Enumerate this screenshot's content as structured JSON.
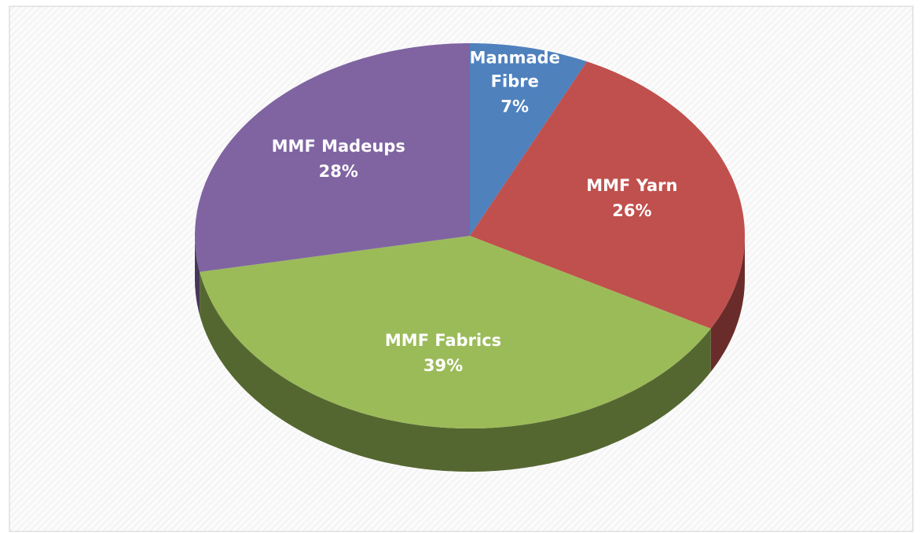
{
  "chart_data": {
    "type": "pie",
    "categories": [
      "Manmade Fibre",
      "MMF Yarn",
      "MMF Fabrics",
      "MMF Madeups"
    ],
    "values": [
      7,
      26,
      39,
      28
    ],
    "value_labels": [
      "7%",
      "26%",
      "39%",
      "28%"
    ],
    "colors": [
      "#4f81bd",
      "#c0504d",
      "#9bbb59",
      "#8064a2"
    ],
    "three_d": true
  }
}
